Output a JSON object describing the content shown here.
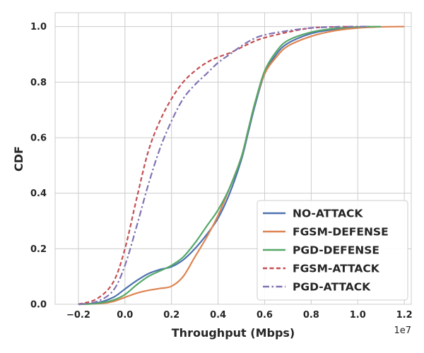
{
  "chart_data": {
    "type": "line",
    "title": "",
    "xlabel": "Throughput (Mbps)",
    "ylabel": "CDF",
    "x_offset_label": "1e7",
    "xlim": [
      -0.3,
      1.23
    ],
    "ylim": [
      0,
      1.05
    ],
    "x_ticks": [
      -0.2,
      0.0,
      0.2,
      0.4,
      0.6,
      0.8,
      1.0,
      1.2
    ],
    "x_tick_labels": [
      "−0.2",
      "0.0",
      "0.2",
      "0.4",
      "0.6",
      "0.8",
      "1.0",
      "1.2"
    ],
    "y_ticks": [
      0.0,
      0.2,
      0.4,
      0.6,
      0.8,
      1.0
    ],
    "y_tick_labels": [
      "0.0",
      "0.2",
      "0.4",
      "0.6",
      "0.8",
      "1.0"
    ],
    "grid": true,
    "legend_position": "bottom-right",
    "series": [
      {
        "name": "NO-ATTACK",
        "color": "#4c72b0",
        "dash": "solid",
        "x": [
          -0.2,
          -0.12,
          -0.05,
          0.0,
          0.05,
          0.1,
          0.15,
          0.2,
          0.25,
          0.3,
          0.35,
          0.4,
          0.45,
          0.5,
          0.53,
          0.56,
          0.6,
          0.65,
          0.7,
          0.8,
          0.9,
          1.0,
          1.05
        ],
        "y": [
          0.0,
          0.005,
          0.025,
          0.055,
          0.085,
          0.11,
          0.125,
          0.135,
          0.16,
          0.2,
          0.25,
          0.31,
          0.4,
          0.52,
          0.62,
          0.72,
          0.83,
          0.9,
          0.94,
          0.975,
          0.99,
          0.998,
          1.0
        ]
      },
      {
        "name": "FGSM-DEFENSE",
        "color": "#dd8452",
        "dash": "solid",
        "x": [
          -0.2,
          -0.1,
          -0.05,
          0.0,
          0.05,
          0.1,
          0.15,
          0.2,
          0.25,
          0.3,
          0.35,
          0.4,
          0.45,
          0.5,
          0.53,
          0.56,
          0.6,
          0.65,
          0.7,
          0.8,
          0.9,
          1.0,
          1.1,
          1.2
        ],
        "y": [
          0.0,
          0.003,
          0.01,
          0.025,
          0.04,
          0.05,
          0.057,
          0.065,
          0.1,
          0.17,
          0.24,
          0.32,
          0.42,
          0.53,
          0.63,
          0.73,
          0.83,
          0.89,
          0.93,
          0.965,
          0.985,
          0.995,
          0.999,
          1.0
        ]
      },
      {
        "name": "PGD-DEFENSE",
        "color": "#55a868",
        "dash": "solid",
        "x": [
          -0.2,
          -0.12,
          -0.05,
          0.0,
          0.05,
          0.1,
          0.15,
          0.2,
          0.25,
          0.3,
          0.35,
          0.4,
          0.45,
          0.5,
          0.53,
          0.56,
          0.6,
          0.65,
          0.7,
          0.8,
          0.9,
          1.0,
          1.1
        ],
        "y": [
          0.0,
          0.003,
          0.015,
          0.035,
          0.07,
          0.1,
          0.12,
          0.14,
          0.17,
          0.22,
          0.28,
          0.34,
          0.42,
          0.53,
          0.63,
          0.73,
          0.84,
          0.91,
          0.95,
          0.98,
          0.993,
          0.999,
          1.0
        ]
      },
      {
        "name": "FGSM-ATTACK",
        "color": "#c44e52",
        "dash": "dashed",
        "x": [
          -0.2,
          -0.12,
          -0.05,
          0.0,
          0.05,
          0.1,
          0.15,
          0.2,
          0.25,
          0.3,
          0.35,
          0.4,
          0.45,
          0.5,
          0.55,
          0.6,
          0.7,
          0.8,
          0.9,
          1.0
        ],
        "y": [
          0.0,
          0.02,
          0.08,
          0.2,
          0.38,
          0.55,
          0.66,
          0.74,
          0.8,
          0.84,
          0.87,
          0.89,
          0.905,
          0.925,
          0.945,
          0.96,
          0.98,
          0.995,
          0.999,
          1.0
        ]
      },
      {
        "name": "PGD-ATTACK",
        "color": "#8172b3",
        "dash": "dashdot",
        "x": [
          -0.2,
          -0.12,
          -0.05,
          0.0,
          0.05,
          0.1,
          0.15,
          0.2,
          0.25,
          0.3,
          0.35,
          0.4,
          0.45,
          0.5,
          0.55,
          0.6,
          0.7,
          0.8,
          0.9,
          1.0,
          1.05
        ],
        "y": [
          0.0,
          0.01,
          0.05,
          0.14,
          0.28,
          0.43,
          0.56,
          0.66,
          0.74,
          0.79,
          0.83,
          0.87,
          0.9,
          0.93,
          0.955,
          0.97,
          0.985,
          0.995,
          0.999,
          1.0,
          1.0
        ]
      }
    ]
  }
}
